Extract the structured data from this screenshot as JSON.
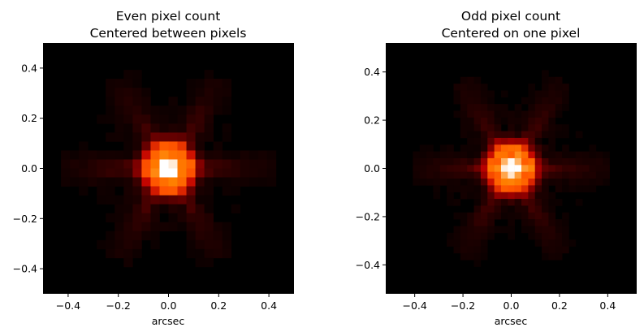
{
  "chart_data": [
    {
      "type": "heatmap",
      "title_line1": "Even pixel count",
      "title_line2": "Centered between pixels",
      "xlabel": "arcsec",
      "ylabel": "",
      "xlim": [
        -0.5,
        0.5
      ],
      "ylim": [
        -0.5,
        0.5
      ],
      "xticks": [
        -0.4,
        -0.2,
        0.0,
        0.2,
        0.4
      ],
      "yticks": [
        -0.4,
        -0.2,
        0.0,
        0.2,
        0.4
      ],
      "xtick_labels": [
        "−0.4",
        "−0.2",
        "0.0",
        "0.2",
        "0.4"
      ],
      "ytick_labels": [
        "−0.4",
        "−0.2",
        "0.0",
        "0.2",
        "0.4"
      ],
      "grid_size": 28,
      "center_on_pixel": false,
      "colormap": "gist_heat",
      "background": "#000000"
    },
    {
      "type": "heatmap",
      "title_line1": "Odd pixel count",
      "title_line2": "Centered on one pixel",
      "xlabel": "arcsec",
      "ylabel": "",
      "xlim": [
        -0.52,
        0.52
      ],
      "ylim": [
        -0.52,
        0.52
      ],
      "xticks": [
        -0.4,
        -0.2,
        0.0,
        0.2,
        0.4
      ],
      "yticks": [
        -0.4,
        -0.2,
        0.0,
        0.2,
        0.4
      ],
      "xtick_labels": [
        "−0.4",
        "−0.2",
        "0.0",
        "0.2",
        "0.4"
      ],
      "ytick_labels": [
        "−0.4",
        "−0.2",
        "0.0",
        "0.2",
        "0.4"
      ],
      "grid_size": 37,
      "center_on_pixel": true,
      "colormap": "gist_heat",
      "background": "#000000"
    }
  ]
}
